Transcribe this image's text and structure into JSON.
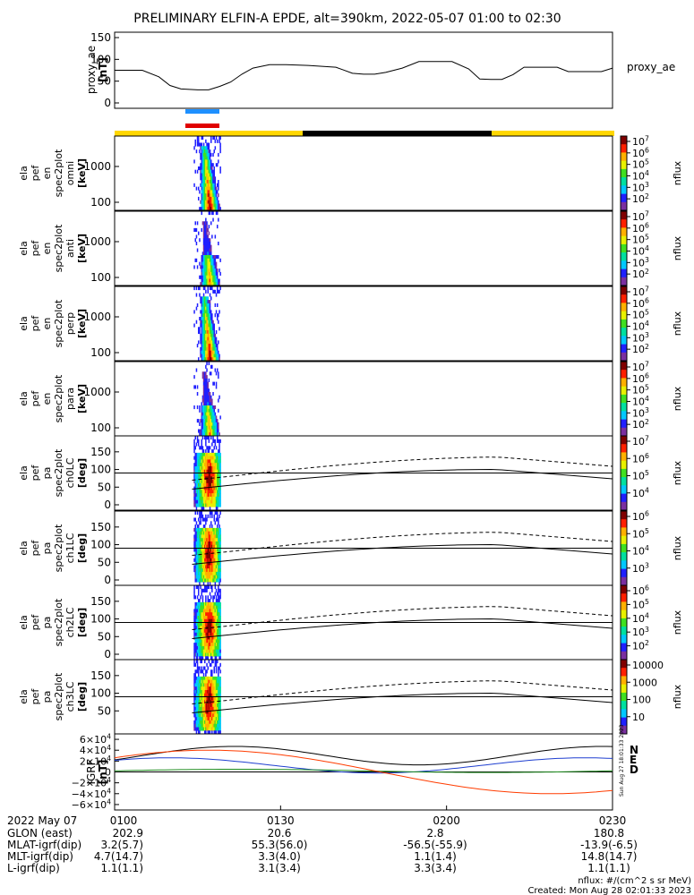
{
  "title": "PRELIMINARY ELFIN-A EPDE, alt=390km, 2022-05-07 01:00 to 02:30",
  "chart_data": [
    {
      "type": "line",
      "panel": "proxy_ae",
      "ylabel": [
        "proxy_ae",
        "[nT]"
      ],
      "legend": "proxy_ae",
      "ylim": [
        0,
        150
      ],
      "yticks": [
        "150",
        "100",
        "50",
        "0"
      ],
      "x_minutes": [
        0,
        5,
        8,
        10,
        12,
        15,
        17,
        19,
        21,
        23,
        25,
        28,
        31,
        35,
        40,
        43,
        45,
        47,
        49,
        52,
        55,
        58,
        61,
        64,
        66,
        68,
        70,
        72,
        74,
        76,
        78,
        80,
        82,
        85,
        88,
        90
      ],
      "values": [
        75,
        75,
        60,
        40,
        32,
        30,
        30,
        38,
        48,
        66,
        80,
        88,
        88,
        86,
        82,
        68,
        66,
        66,
        70,
        80,
        95,
        95,
        95,
        78,
        55,
        54,
        54,
        65,
        82,
        82,
        82,
        82,
        72,
        72,
        72,
        80
      ]
    },
    {
      "type": "heatmap",
      "panel": "spectrograms",
      "panels": [
        {
          "ylabel": [
            "ela",
            "pef",
            "en",
            "spec2plot",
            "omni",
            "[keV]"
          ],
          "yticks": [
            "1000",
            "100"
          ],
          "zlabel": "nflux",
          "zticks": [
            "10^7",
            "10^6",
            "10^5",
            "10^4",
            "10^3",
            "10^2"
          ]
        },
        {
          "ylabel": [
            "ela",
            "pef",
            "en",
            "spec2plot",
            "anti",
            "[keV]"
          ],
          "yticks": [
            "1000",
            "100"
          ],
          "zlabel": "nflux",
          "zticks": [
            "10^7",
            "10^6",
            "10^5",
            "10^4",
            "10^3",
            "10^2"
          ]
        },
        {
          "ylabel": [
            "ela",
            "pef",
            "en",
            "spec2plot",
            "perp",
            "[keV]"
          ],
          "yticks": [
            "1000",
            "100"
          ],
          "zlabel": "nflux",
          "zticks": [
            "10^7",
            "10^6",
            "10^5",
            "10^4",
            "10^3",
            "10^2"
          ]
        },
        {
          "ylabel": [
            "ela",
            "pef",
            "en",
            "spec2plot",
            "para",
            "[keV]"
          ],
          "yticks": [
            "1000",
            "100"
          ],
          "zlabel": "nflux",
          "zticks": [
            "10^7",
            "10^6",
            "10^5",
            "10^4",
            "10^3",
            "10^2"
          ]
        },
        {
          "ylabel": [
            "ela",
            "pef",
            "pa",
            "spec2plot",
            "ch0LC",
            "[deg]"
          ],
          "yticks": [
            "150",
            "100",
            "50",
            "0"
          ],
          "zlabel": "nflux",
          "zticks": [
            "10^7",
            "10^6",
            "10^5",
            "10^4"
          ]
        },
        {
          "ylabel": [
            "ela",
            "pef",
            "pa",
            "spec2plot",
            "ch1LC",
            "[deg]"
          ],
          "yticks": [
            "150",
            "100",
            "50",
            "0"
          ],
          "zlabel": "nflux",
          "zticks": [
            "10^6",
            "10^5",
            "10^4",
            "10^3"
          ]
        },
        {
          "ylabel": [
            "ela",
            "pef",
            "pa",
            "spec2plot",
            "ch2LC",
            "[deg]"
          ],
          "yticks": [
            "150",
            "100",
            "50",
            "0"
          ],
          "zlabel": "nflux",
          "zticks": [
            "10^6",
            "10^5",
            "10^4",
            "10^3",
            "10^2"
          ]
        },
        {
          "ylabel": [
            "ela",
            "pef",
            "pa",
            "spec2plot",
            "ch3LC",
            "[deg]"
          ],
          "yticks": [
            "150",
            "100",
            "50"
          ],
          "zlabel": "nflux",
          "zticks": [
            "10000",
            "1000",
            "100",
            "10"
          ]
        }
      ]
    },
    {
      "type": "line",
      "panel": "IGRF",
      "ylabel": [
        "IGRF",
        "[nT]"
      ],
      "yticks": [
        "6×10^4",
        "4×10^4",
        "2×10^4",
        "0",
        "−2×10^4",
        "−4×10^4",
        "−6×10^4"
      ],
      "legend": [
        "N",
        "E",
        "D"
      ],
      "colors": [
        "#000000",
        "#1c8c1c",
        "#ff3c00"
      ]
    }
  ],
  "colorbar_colors": [
    "#ffffff",
    "#7a2fa0",
    "#2020ff",
    "#00c8ff",
    "#00e0a0",
    "#40e020",
    "#e8f000",
    "#ffb000",
    "#ff2000",
    "#800000"
  ],
  "bars": {
    "science_colors": [
      "#1e90ff",
      "#e00000"
    ],
    "orbit_colors": [
      "#ffd700",
      "#000000"
    ]
  },
  "time_axis": {
    "ticks": [
      "0100",
      "0130",
      "0200",
      "0230"
    ],
    "date": "2022 May 07"
  },
  "ephemeris": {
    "rows": [
      {
        "label": "GLON (east)",
        "values": [
          "202.9",
          "20.6",
          "2.8",
          "180.8"
        ]
      },
      {
        "label": "MLAT-igrf(dip)",
        "values": [
          "3.2(5.7)",
          "55.3(56.0)",
          "-56.5(-55.9)",
          "-13.9(-6.5)"
        ]
      },
      {
        "label": "MLT-igrf(dip)",
        "values": [
          "4.7(14.7)",
          "3.3(4.0)",
          "1.1(1.4)",
          "14.8(14.7)"
        ]
      },
      {
        "label": "L-igrf(dip)",
        "values": [
          "1.1(1.1)",
          "3.1(3.4)",
          "3.3(3.4)",
          "1.1(1.1)"
        ]
      }
    ]
  },
  "footer": {
    "units": "nflux: #/(cm^2 s sr MeV)",
    "created": "Created: Mon Aug 28 02:01:33 2023",
    "side_stamp": "Sun Aug 27 18:01:33 2023"
  }
}
